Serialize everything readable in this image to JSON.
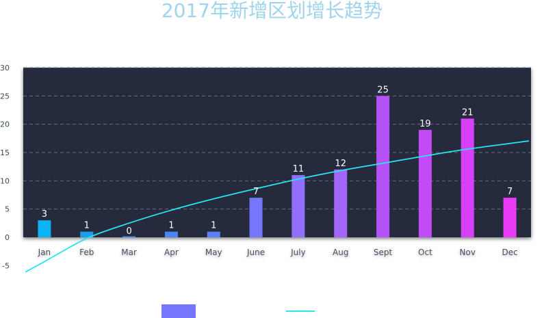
{
  "chart_data": {
    "type": "bar",
    "title": "2017年新增区划增长趋势",
    "categories": [
      "Jan",
      "Feb",
      "Mar",
      "Apr",
      "May",
      "June",
      "July",
      "Aug",
      "Sept",
      "Oct",
      "Nov",
      "Dec"
    ],
    "series": [
      {
        "type": "bar",
        "values": [
          3,
          1,
          0,
          1,
          1,
          7,
          11,
          12,
          25,
          19,
          21,
          7
        ],
        "data_labels": [
          "3",
          "1",
          "0",
          "1",
          "1",
          "7",
          "11",
          "12",
          "25",
          "19",
          "21",
          "7"
        ],
        "colors": [
          "#0ab4f4",
          "#1a9ff0",
          "#3a8ef5",
          "#4a86f6",
          "#5b80f7",
          "#7676ff",
          "#8f6ffb",
          "#a366f9",
          "#b552f7",
          "#c24af7",
          "#d640f8",
          "#ea3cf8"
        ]
      },
      {
        "type": "line",
        "color": "#26e6f2",
        "values": [
          -4.3,
          -0.2,
          2.5,
          4.8,
          6.8,
          8.6,
          10.3,
          11.8,
          13.1,
          14.4,
          15.6,
          16.6
        ]
      }
    ],
    "ylim": [
      -5,
      30
    ],
    "yticks": [
      -5,
      0,
      5,
      10,
      15,
      20,
      25,
      30
    ],
    "grid": true,
    "legend": "bottom-center",
    "colors": {
      "plot_bg": "#262a3e",
      "grid": "#6b6f80",
      "tick_text": "#3a4a5a",
      "category_text": "#4a4f66",
      "value_label": "#ffffff",
      "legend_bar": "#7676ff",
      "legend_line": "#26e6f2",
      "title": "#9fd3ee"
    }
  }
}
